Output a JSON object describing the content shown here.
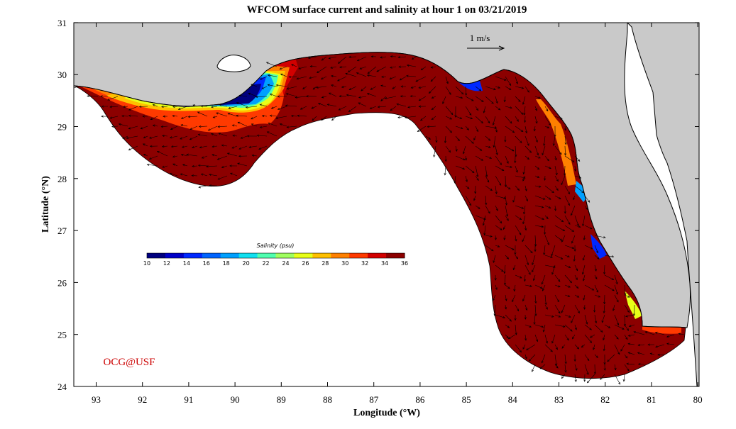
{
  "title": "WFCOM surface current and salinity at hour 1 on 03/21/2019",
  "x_axis": {
    "label": "Longitude (°W)",
    "ticks": [
      "93",
      "92",
      "91",
      "90",
      "89",
      "88",
      "87",
      "86",
      "85",
      "84",
      "83",
      "82",
      "81",
      "80"
    ]
  },
  "y_axis": {
    "label": "Latitude (°N)",
    "ticks": [
      "24",
      "25",
      "26",
      "27",
      "28",
      "29",
      "30",
      "31"
    ]
  },
  "colorbar": {
    "title": "Salinity (psu)",
    "ticks": [
      "10",
      "12",
      "14",
      "16",
      "18",
      "20",
      "22",
      "24",
      "26",
      "28",
      "30",
      "32",
      "34",
      "36"
    ],
    "colors": [
      "#00007f",
      "#0000c8",
      "#0028ff",
      "#0064ff",
      "#00a0ff",
      "#10e0f0",
      "#50ffb0",
      "#a0ff60",
      "#e8ff18",
      "#ffc000",
      "#ff8000",
      "#ff3a00",
      "#d20000",
      "#8c0000"
    ]
  },
  "scale_arrow": {
    "label": "1 m/s"
  },
  "credit": "OCG@USF",
  "colors": {
    "land": "#c9c9c9",
    "ocean": "#ffffff",
    "frame": "#000000",
    "credit": "#cc0000"
  }
}
